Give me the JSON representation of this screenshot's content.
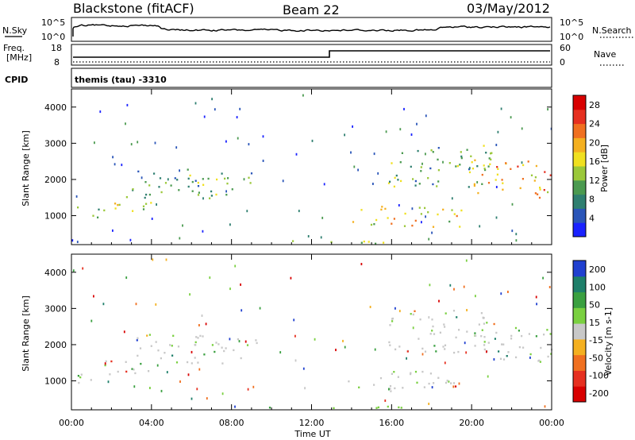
{
  "header": {
    "station": "Blackstone (fitACF)",
    "beam": "Beam 22",
    "date": "03/May/2012"
  },
  "panels": {
    "nsky_label": "N.Sky",
    "nsearch_label": "N.Search",
    "nsky_ticks": [
      "10^5",
      "10^0"
    ],
    "nsearch_ticks": [
      "10^5",
      "10^0"
    ],
    "freq_label_1": "Freq.",
    "freq_label_2": "[MHz]",
    "freq_ticks": [
      "18",
      "8"
    ],
    "nave_label": "Nave",
    "nave_ticks": [
      "60",
      "0"
    ],
    "cpid_label": "CPID",
    "cpid_text": "themis (tau) -3310"
  },
  "chart_data": [
    {
      "type": "heatmap",
      "title": "",
      "xlabel": "",
      "ylabel": "Slant Range [km]",
      "x_ticks": [
        "00:00",
        "04:00",
        "08:00",
        "12:00",
        "16:00",
        "20:00",
        "00:00"
      ],
      "xlim": [
        0,
        24
      ],
      "y_ticks": [
        1000,
        2000,
        3000,
        4000
      ],
      "ylim": [
        200,
        4500
      ],
      "colorbar": {
        "label": "Power [dB]",
        "ticks": [
          4,
          8,
          12,
          16,
          20,
          24,
          28
        ],
        "range": [
          0,
          30
        ],
        "colors": [
          "#1a22ff",
          "#2a55b8",
          "#2f7f70",
          "#4b9a50",
          "#9bc83a",
          "#f0e020",
          "#f4b020",
          "#f07020",
          "#e63020",
          "#d80000"
        ]
      },
      "regions": [
        {
          "t0": 0.0,
          "t1": 1.6,
          "r0": 900,
          "r1": 1300,
          "level": 0.35
        },
        {
          "t0": 1.6,
          "t1": 4.0,
          "r0": 1100,
          "r1": 1700,
          "level": 0.45
        },
        {
          "t0": 3.0,
          "t1": 6.5,
          "r0": 1500,
          "r1": 2300,
          "level": 0.3
        },
        {
          "t0": 6.0,
          "t1": 8.5,
          "r0": 1500,
          "r1": 2300,
          "level": 0.35
        },
        {
          "t0": 8.5,
          "t1": 9.8,
          "r0": 1900,
          "r1": 2200,
          "level": 0.25
        },
        {
          "t0": 9.0,
          "t1": 17.0,
          "r0": 250,
          "r1": 350,
          "level": 0.5
        },
        {
          "t0": 13.8,
          "t1": 19.5,
          "r0": 700,
          "r1": 1300,
          "level": 0.55
        },
        {
          "t0": 15.8,
          "t1": 21.0,
          "r0": 1800,
          "r1": 3000,
          "level": 0.35
        },
        {
          "t0": 20.0,
          "t1": 24.0,
          "r0": 1500,
          "r1": 2600,
          "level": 0.7
        }
      ]
    },
    {
      "type": "heatmap",
      "title": "",
      "xlabel": "Time UT",
      "ylabel": "Slant Range [km]",
      "x_ticks": [
        "00:00",
        "04:00",
        "08:00",
        "12:00",
        "16:00",
        "20:00",
        "00:00"
      ],
      "xlim": [
        0,
        24
      ],
      "y_ticks": [
        1000,
        2000,
        3000,
        4000
      ],
      "ylim": [
        200,
        4500
      ],
      "colorbar": {
        "label": "Velocity [m s-1]",
        "ticks": [
          200,
          100,
          50,
          15,
          -15,
          -50,
          -100,
          -200
        ],
        "range": [
          -250,
          250
        ],
        "colors": [
          "#2040d0",
          "#1e7f6a",
          "#3aa040",
          "#7ad040",
          "#c8c8c8",
          "#f4b020",
          "#f07020",
          "#e63020",
          "#d80000"
        ]
      },
      "regions": [
        {
          "t0": 0.0,
          "t1": 1.6,
          "r0": 900,
          "r1": 1300,
          "level": 0.5
        },
        {
          "t0": 1.6,
          "t1": 4.0,
          "r0": 1100,
          "r1": 1700,
          "level": 0.5
        },
        {
          "t0": 3.0,
          "t1": 6.5,
          "r0": 1500,
          "r1": 2300,
          "level": 0.6
        },
        {
          "t0": 6.0,
          "t1": 8.5,
          "r0": 1500,
          "r1": 2300,
          "level": 0.6
        },
        {
          "t0": 8.5,
          "t1": 9.8,
          "r0": 1900,
          "r1": 2200,
          "level": 0.5
        },
        {
          "t0": 9.0,
          "t1": 17.0,
          "r0": 250,
          "r1": 350,
          "level": 0.65
        },
        {
          "t0": 13.8,
          "t1": 19.5,
          "r0": 700,
          "r1": 1300,
          "level": 0.5
        },
        {
          "t0": 15.8,
          "t1": 21.0,
          "r0": 1800,
          "r1": 3000,
          "level": 0.5
        },
        {
          "t0": 20.0,
          "t1": 24.0,
          "r0": 1500,
          "r1": 2600,
          "level": 0.5
        }
      ]
    }
  ]
}
